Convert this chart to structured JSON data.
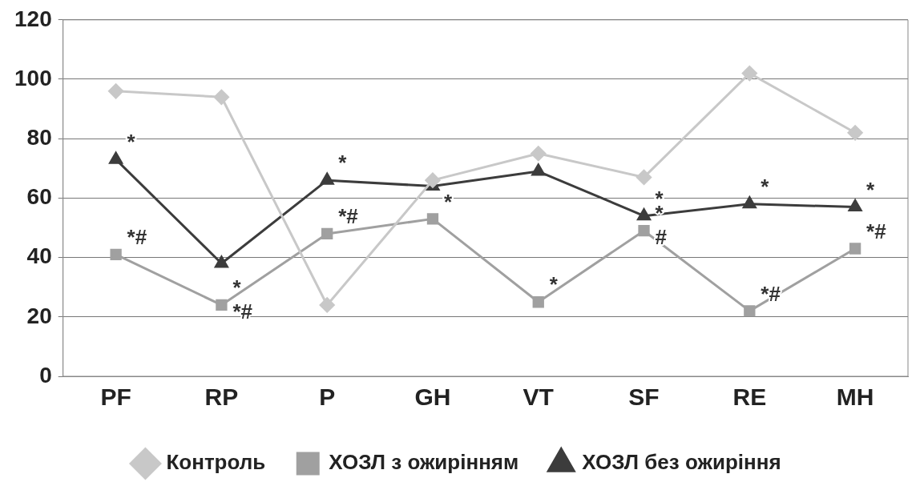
{
  "chart_data": {
    "type": "line",
    "categories": [
      "PF",
      "RP",
      "P",
      "GH",
      "VT",
      "SF",
      "RE",
      "MH"
    ],
    "series": [
      {
        "name": "Контроль",
        "color": "#c8c8c8",
        "marker": "diamond",
        "values": [
          96,
          94,
          24,
          66,
          75,
          67,
          102,
          82
        ]
      },
      {
        "name": "ХОЗЛ з ожирінням",
        "color": "#a0a0a0",
        "marker": "square",
        "values": [
          41,
          24,
          48,
          53,
          25,
          49,
          22,
          43
        ]
      },
      {
        "name": "ХОЗЛ без ожиріння",
        "color": "#3c3c3c",
        "marker": "triangle",
        "values": [
          73,
          38,
          66,
          64,
          69,
          54,
          58,
          57
        ]
      }
    ],
    "ylim": [
      0,
      120
    ],
    "yticks": [
      0,
      20,
      40,
      60,
      80,
      100,
      120
    ],
    "grid": "y",
    "legend": "bottom",
    "line_style": "solid",
    "annotations": [
      {
        "text": "*",
        "x": "PF",
        "y": 73
      },
      {
        "text": "*#",
        "x": "PF",
        "y": 41
      },
      {
        "text": "*",
        "x": "RP",
        "y": 24
      },
      {
        "text": "*#",
        "x": "RP",
        "y": 24
      },
      {
        "text": "*",
        "x": "P",
        "y": 66
      },
      {
        "text": "*#",
        "x": "P",
        "y": 48
      },
      {
        "text": "*",
        "x": "GH",
        "y": 53
      },
      {
        "text": "*",
        "x": "VT",
        "y": 25
      },
      {
        "text": "*",
        "x": "SF",
        "y": 54
      },
      {
        "text": "*",
        "x": "SF",
        "y": 49
      },
      {
        "text": "#",
        "x": "SF",
        "y": 49
      },
      {
        "text": "*",
        "x": "RE",
        "y": 58
      },
      {
        "text": "*#",
        "x": "RE",
        "y": 22
      },
      {
        "text": "*",
        "x": "MH",
        "y": 57
      },
      {
        "text": "*#",
        "x": "MH",
        "y": 43
      }
    ]
  }
}
